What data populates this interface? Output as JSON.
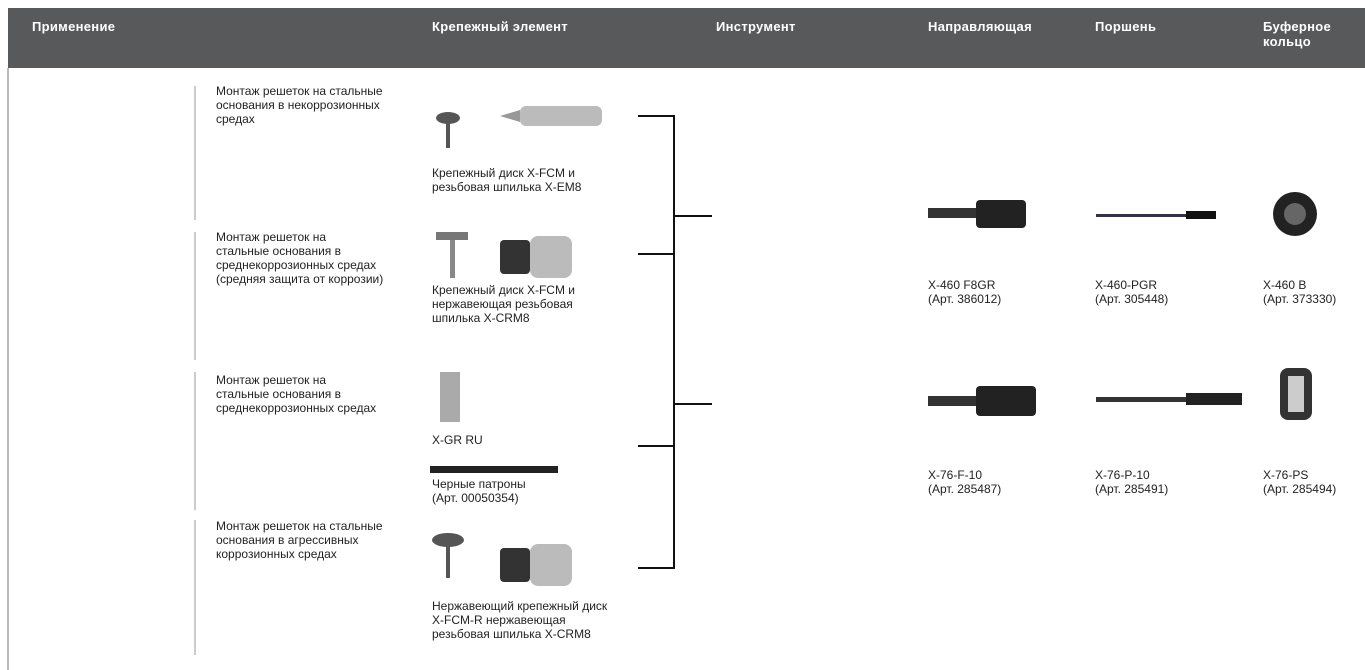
{
  "header": {
    "columns": [
      [
        "Применение"
      ],
      [
        "Крепежный элемент"
      ],
      [
        "Инструмент"
      ],
      [
        "Направляющая"
      ],
      [
        "Поршень"
      ],
      [
        "Буферное",
        "кольцо"
      ]
    ]
  },
  "applications": [
    [
      "Монтаж решеток на стальные",
      "основания в некоррозионных",
      "средах"
    ],
    [
      "Монтаж решеток на",
      "стальные основания в",
      "среднекоррозионных средах",
      "(средняя защита от коррозии)"
    ],
    [
      "Монтаж решеток на",
      "стальные основания в",
      "среднекоррозионных средах"
    ],
    [
      "Монтаж решеток на стальные",
      "основания в агрессивных",
      "коррозионных средах"
    ]
  ],
  "fasteners": [
    [
      "Крепежный диск X-FCM и",
      "резьбовая шпилька X-EM8"
    ],
    [
      "Крепежный диск X-FCM и",
      "нержавеющая резьбовая",
      "шпилька X-CRM8"
    ],
    [
      "X-GR RU"
    ],
    [
      "Черные патроны",
      "(Арт. 00050354)"
    ],
    [
      "Нержавеющий крепежный диск",
      "X-FCM-R нержавеющая",
      "резьбовая шпилька X-CRM8"
    ]
  ],
  "parts": [
    [
      [
        "X-460 F8GR",
        "(Арт. 386012)"
      ],
      [
        "X-460-PGR",
        "(Арт. 305448)"
      ],
      [
        "X-460 B",
        "(Арт. 373330)"
      ]
    ],
    [
      [
        "X-76-F-10",
        "(Арт. 285487)"
      ],
      [
        "X-76-P-10",
        "(Арт. 285491)"
      ],
      [
        "X-76-PS",
        "(Арт. 285494)"
      ]
    ]
  ]
}
